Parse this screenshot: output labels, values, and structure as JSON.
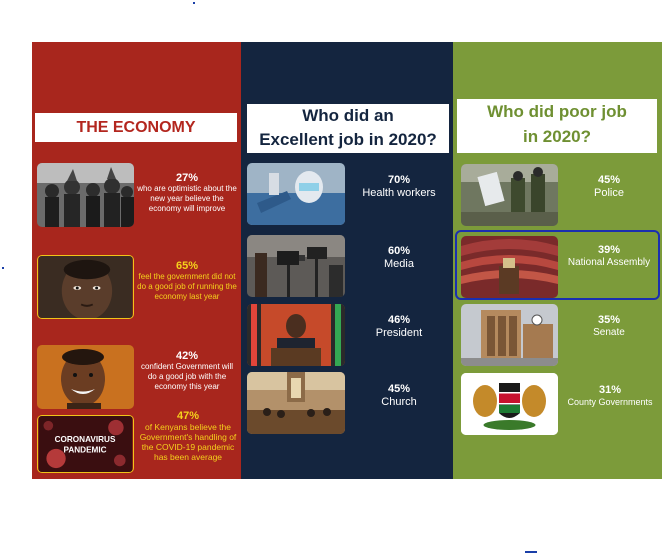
{
  "economy": {
    "header": "THE ECONOMY",
    "items": [
      {
        "percent": "27%",
        "text": "who are optimistic about the new year believe the economy will improve",
        "photo_icon": "crowd-photo-bw"
      },
      {
        "percent": "65%",
        "text": "feel the government did not do a good job of running the economy last year",
        "photo_icon": "child-face-photo"
      },
      {
        "percent": "42%",
        "text": "confident Government will do a good job with the economy this year",
        "photo_icon": "smiling-man-photo"
      },
      {
        "percent": "47%",
        "text": "of Kenyans believe the Government's handling of the COVID-19 pandemic has been average",
        "photo_icon": "coronavirus-photo",
        "photo_label_1": "CORONAVIRUS",
        "photo_label_2": "PANDEMIC"
      }
    ]
  },
  "excellent": {
    "header_line1": "Who did an",
    "header_line2": "Excellent job in 2020?",
    "items": [
      {
        "percent": "70%",
        "label": "Health workers",
        "photo_icon": "health-worker-photo"
      },
      {
        "percent": "60%",
        "label": "Media",
        "photo_icon": "media-cameras-photo"
      },
      {
        "percent": "46%",
        "label": "President",
        "photo_icon": "president-podium-photo"
      },
      {
        "percent": "45%",
        "label": "Church",
        "photo_icon": "church-interior-photo"
      }
    ]
  },
  "poor": {
    "header_line1": "Who did poor job",
    "header_line2": "in 2020?",
    "items": [
      {
        "percent": "45%",
        "label": "Police",
        "photo_icon": "police-photo"
      },
      {
        "percent": "39%",
        "label": "National Assembly",
        "photo_icon": "assembly-chamber-photo"
      },
      {
        "percent": "35%",
        "label": "Senate",
        "photo_icon": "parliament-building-photo"
      },
      {
        "percent": "31%",
        "label": "County Governments",
        "photo_icon": "coat-of-arms-photo"
      }
    ]
  },
  "colors": {
    "economy_bg": "#a8261d",
    "excellent_bg": "#14253f",
    "poor_bg": "#7c9b3a",
    "highlight": "#1a2fb0",
    "yellow_text": "#f5d21c"
  }
}
